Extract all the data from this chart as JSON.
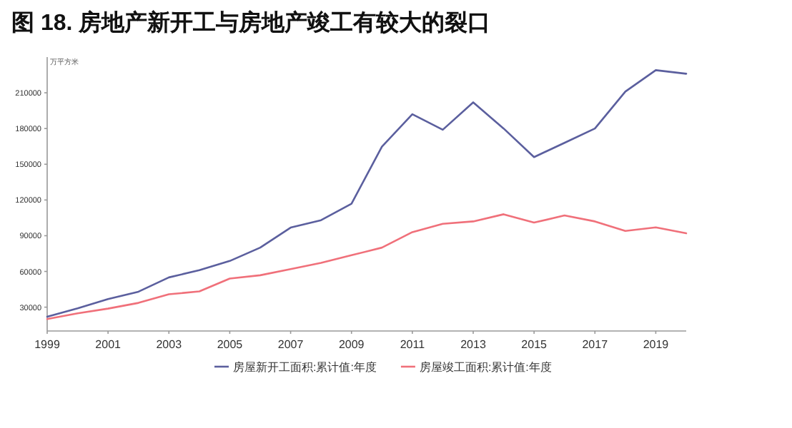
{
  "chart_data": {
    "type": "line",
    "title": "图 18. 房地产新开工与房地产竣工有较大的裂口",
    "ylabel": "万平方米",
    "x": [
      1999,
      2000,
      2001,
      2002,
      2003,
      2004,
      2005,
      2006,
      2007,
      2008,
      2009,
      2010,
      2011,
      2012,
      2013,
      2014,
      2015,
      2016,
      2017,
      2018,
      2019,
      2020
    ],
    "series": [
      {
        "name": "房屋新开工面积:累计值:年度",
        "color": "#5b5f9e",
        "values": [
          22000,
          29000,
          36800,
          43000,
          55000,
          61000,
          68800,
          80000,
          96800,
          103000,
          116800,
          164800,
          192000,
          179000,
          202000,
          180000,
          156000,
          168000,
          180000,
          211000,
          229000,
          226000
        ]
      },
      {
        "name": "房屋竣工面积:累计值:年度",
        "color": "#f0707a",
        "values": [
          20000,
          24800,
          28800,
          33600,
          40800,
          43200,
          54000,
          56800,
          62000,
          67200,
          73600,
          80000,
          93000,
          100000,
          102000,
          108000,
          101000,
          107000,
          102000,
          94000,
          97000,
          92000
        ]
      }
    ],
    "xlim": [
      1999,
      2020
    ],
    "xticks": [
      1999,
      2001,
      2003,
      2005,
      2007,
      2009,
      2011,
      2013,
      2015,
      2017,
      2019
    ],
    "ylim": [
      10000,
      240000
    ],
    "yticks": [
      30000,
      60000,
      90000,
      120000,
      150000,
      180000,
      210000
    ],
    "grid": false,
    "legend": "bottom",
    "marker": "none",
    "line_style": "solid"
  }
}
